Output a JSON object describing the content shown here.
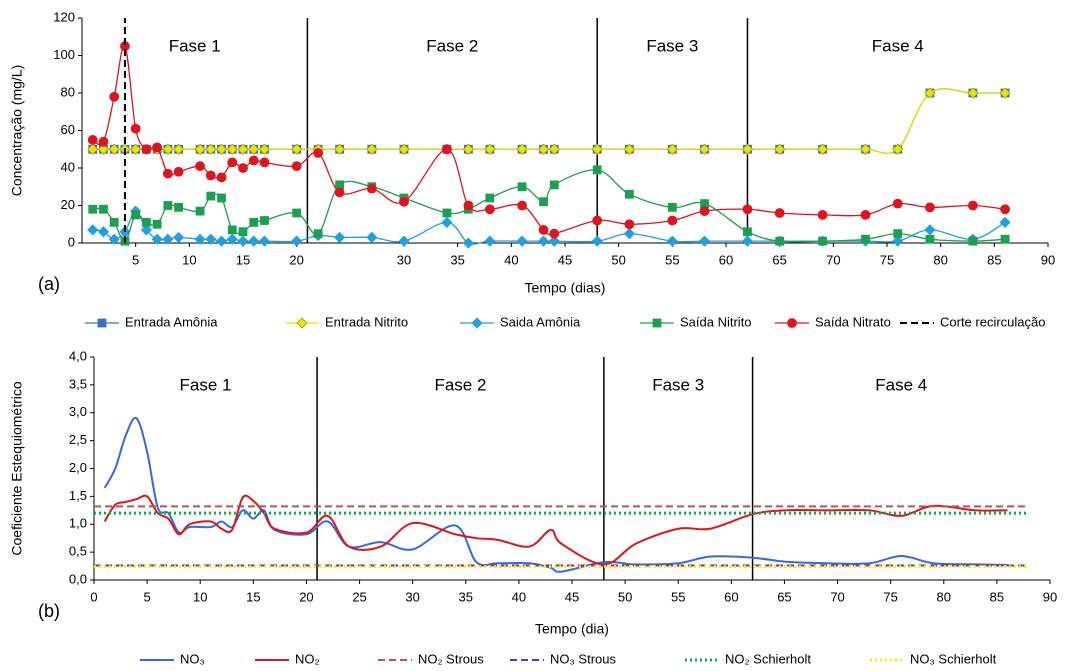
{
  "chart_data": [
    {
      "type": "line",
      "panel_label": "(a)",
      "xlabel": "Tempo (dias)",
      "ylabel": "Concentração (mg/L)",
      "xlim": [
        0,
        90
      ],
      "xticks": [
        5,
        10,
        15,
        20,
        30,
        35,
        40,
        45,
        50,
        55,
        60,
        65,
        70,
        75,
        80,
        85,
        90
      ],
      "ylim": [
        0,
        120
      ],
      "yticks": [
        0,
        20,
        40,
        60,
        80,
        100,
        120
      ],
      "grid": false,
      "phases": [
        "Fase 1",
        "Fase 2",
        "Fase 3",
        "Fase 4"
      ],
      "phase_bounds": [
        21,
        48,
        62
      ],
      "series": [
        {
          "name": "Entrada Amônia",
          "color": "#3a6fbf",
          "marker": "square",
          "style": "solid",
          "x": [
            1,
            2,
            3,
            4,
            5,
            6,
            7,
            8,
            9,
            11,
            12,
            13,
            14,
            15,
            16,
            17,
            20,
            22,
            24,
            27,
            30,
            34,
            36,
            38,
            41,
            43,
            44,
            48,
            51,
            55,
            58,
            62,
            65,
            69,
            73,
            76,
            79,
            83,
            86
          ],
          "values": [
            50,
            50,
            50,
            50,
            50,
            50,
            50,
            50,
            50,
            50,
            50,
            50,
            50,
            50,
            50,
            50,
            50,
            50,
            50,
            50,
            50,
            50,
            50,
            50,
            50,
            50,
            50,
            50,
            50,
            50,
            50,
            50,
            50,
            50,
            50,
            50,
            80,
            80,
            80
          ]
        },
        {
          "name": "Entrada Nitrito",
          "color": "#e6e600",
          "marker": "diamond",
          "style": "solid",
          "x": [
            1,
            2,
            3,
            4,
            5,
            6,
            7,
            8,
            9,
            11,
            12,
            13,
            14,
            15,
            16,
            17,
            20,
            22,
            24,
            27,
            30,
            34,
            36,
            38,
            41,
            43,
            44,
            48,
            51,
            55,
            58,
            62,
            65,
            69,
            73,
            76,
            79,
            83,
            86
          ],
          "values": [
            50,
            50,
            50,
            50,
            50,
            50,
            50,
            50,
            50,
            50,
            50,
            50,
            50,
            50,
            50,
            50,
            50,
            50,
            50,
            50,
            50,
            50,
            50,
            50,
            50,
            50,
            50,
            50,
            50,
            50,
            50,
            50,
            50,
            50,
            50,
            50,
            80,
            80,
            80
          ]
        },
        {
          "name": "Saida Amônia",
          "color": "#1fa0e0",
          "marker": "diamond",
          "style": "solid",
          "x": [
            1,
            2,
            3,
            4,
            5,
            6,
            7,
            8,
            9,
            11,
            12,
            13,
            14,
            15,
            16,
            17,
            20,
            22,
            24,
            27,
            30,
            34,
            36,
            38,
            41,
            43,
            44,
            48,
            51,
            55,
            58,
            62,
            65,
            69,
            73,
            76,
            79,
            83,
            86
          ],
          "values": [
            7,
            6,
            2,
            6,
            17,
            7,
            2,
            2,
            3,
            2,
            2,
            1,
            2,
            1,
            1,
            1,
            1,
            4,
            3,
            3,
            1,
            11,
            0,
            1,
            1,
            1,
            1,
            1,
            5,
            1,
            1,
            1,
            1,
            1,
            1,
            1,
            7,
            2,
            11
          ]
        },
        {
          "name": "Saída Nitrito",
          "color": "#1aa050",
          "marker": "square",
          "style": "solid",
          "x": [
            1,
            2,
            3,
            4,
            5,
            6,
            7,
            8,
            9,
            11,
            12,
            13,
            14,
            15,
            16,
            17,
            20,
            22,
            24,
            27,
            30,
            34,
            36,
            38,
            41,
            43,
            44,
            48,
            51,
            55,
            58,
            62,
            65,
            69,
            73,
            76,
            79,
            83,
            86
          ],
          "values": [
            18,
            18,
            11,
            1,
            15,
            11,
            10,
            20,
            19,
            17,
            25,
            24,
            7,
            6,
            11,
            12,
            16,
            5,
            31,
            30,
            24,
            16,
            18,
            24,
            30,
            22,
            31,
            39,
            26,
            19,
            21,
            6,
            1,
            1,
            2,
            5,
            2,
            1,
            2
          ]
        },
        {
          "name": "Saída Nitrato",
          "color": "#e0141e",
          "marker": "circle",
          "style": "solid",
          "x": [
            1,
            2,
            3,
            4,
            5,
            6,
            7,
            8,
            9,
            11,
            12,
            13,
            14,
            15,
            16,
            17,
            20,
            22,
            24,
            27,
            30,
            34,
            36,
            38,
            41,
            43,
            44,
            48,
            51,
            55,
            58,
            62,
            65,
            69,
            73,
            76,
            79,
            83,
            86
          ],
          "values": [
            55,
            54,
            78,
            105,
            61,
            50,
            51,
            37,
            38,
            41,
            36,
            35,
            43,
            40,
            44,
            43,
            41,
            48,
            27,
            29,
            22,
            50,
            20,
            18,
            20,
            7,
            5,
            12,
            10,
            12,
            17,
            18,
            16,
            15,
            15,
            21,
            19,
            20,
            18
          ]
        },
        {
          "name": "Corte recirculação",
          "color": "#000000",
          "marker": "none",
          "style": "dashed",
          "x": [
            4,
            4
          ],
          "values": [
            0,
            120
          ]
        }
      ]
    },
    {
      "type": "line",
      "panel_label": "(b)",
      "xlabel": "Tempo (dia)",
      "ylabel": "Coeficiente Estequiométrico",
      "xlim": [
        0,
        90
      ],
      "xticks": [
        0,
        5,
        10,
        15,
        20,
        25,
        30,
        35,
        40,
        45,
        50,
        55,
        60,
        65,
        70,
        75,
        80,
        85,
        90
      ],
      "ylim": [
        0,
        4
      ],
      "yticks": [
        {
          "value": 0,
          "label": "0,0"
        },
        {
          "value": 0.5,
          "label": "0,5"
        },
        {
          "value": 1,
          "label": "1,0"
        },
        {
          "value": 1.5,
          "label": "1,5"
        },
        {
          "value": 2,
          "label": "2,0"
        },
        {
          "value": 2.5,
          "label": "2,5"
        },
        {
          "value": 3,
          "label": "3,0"
        },
        {
          "value": 3.5,
          "label": "3,5"
        },
        {
          "value": 4,
          "label": "4,0"
        }
      ],
      "grid": false,
      "phases": [
        "Fase 1",
        "Fase 2",
        "Fase 3",
        "Fase 4"
      ],
      "phase_bounds": [
        21,
        48,
        62
      ],
      "series": [
        {
          "name": "NO₃",
          "color": "#3a66e0",
          "marker": "none",
          "style": "solid",
          "x": [
            1,
            2,
            3,
            4,
            5,
            6,
            7,
            8,
            9,
            11,
            12,
            13,
            14,
            15,
            16,
            17,
            20,
            22,
            24,
            27,
            30,
            34,
            36,
            38,
            41,
            43,
            44,
            48,
            51,
            55,
            58,
            62,
            65,
            69,
            73,
            76,
            79,
            83,
            86
          ],
          "values": [
            1.65,
            2.0,
            2.6,
            2.9,
            2.3,
            1.3,
            1.2,
            0.85,
            0.95,
            0.95,
            1.05,
            0.95,
            1.25,
            1.1,
            1.25,
            0.9,
            0.82,
            1.05,
            0.6,
            0.68,
            0.55,
            0.98,
            0.32,
            0.3,
            0.3,
            0.22,
            0.15,
            0.32,
            0.28,
            0.3,
            0.42,
            0.4,
            0.33,
            0.3,
            0.3,
            0.43,
            0.3,
            0.28,
            0.27
          ]
        },
        {
          "name": "NO₂",
          "color": "#e0141e",
          "marker": "none",
          "style": "solid",
          "x": [
            1,
            2,
            3,
            4,
            5,
            6,
            7,
            8,
            9,
            11,
            12,
            13,
            14,
            15,
            16,
            17,
            20,
            22,
            24,
            27,
            30,
            34,
            36,
            38,
            41,
            43,
            44,
            48,
            51,
            55,
            58,
            62,
            65,
            69,
            73,
            76,
            79,
            83,
            86
          ],
          "values": [
            1.05,
            1.35,
            1.4,
            1.45,
            1.5,
            1.2,
            1.1,
            0.82,
            1.0,
            1.05,
            0.92,
            0.9,
            1.48,
            1.42,
            1.2,
            0.92,
            0.85,
            1.15,
            0.6,
            0.6,
            1.02,
            0.82,
            0.75,
            0.72,
            0.6,
            0.9,
            0.65,
            0.28,
            0.65,
            0.92,
            0.92,
            1.18,
            1.25,
            1.25,
            1.25,
            1.15,
            1.33,
            1.25,
            1.25
          ]
        },
        {
          "name": "NO₂ Strous",
          "color": "#c0504d",
          "marker": "none",
          "style": "dashed",
          "x": [
            0,
            88
          ],
          "values": [
            1.32,
            1.32
          ]
        },
        {
          "name": "NO₃ Strous",
          "color": "#7030a0",
          "marker": "none",
          "style": "dashed",
          "x": [
            0,
            88
          ],
          "values": [
            0.26,
            0.26
          ]
        },
        {
          "name": "NO₂ Schierholt",
          "color": "#00b050",
          "marker": "none",
          "style": "dotted",
          "x": [
            0,
            88
          ],
          "values": [
            1.2,
            1.2
          ]
        },
        {
          "name": "NO₃ Schierholt",
          "color": "#ffee00",
          "marker": "none",
          "style": "dotted",
          "x": [
            0,
            88
          ],
          "values": [
            0.24,
            0.24
          ]
        }
      ]
    }
  ]
}
